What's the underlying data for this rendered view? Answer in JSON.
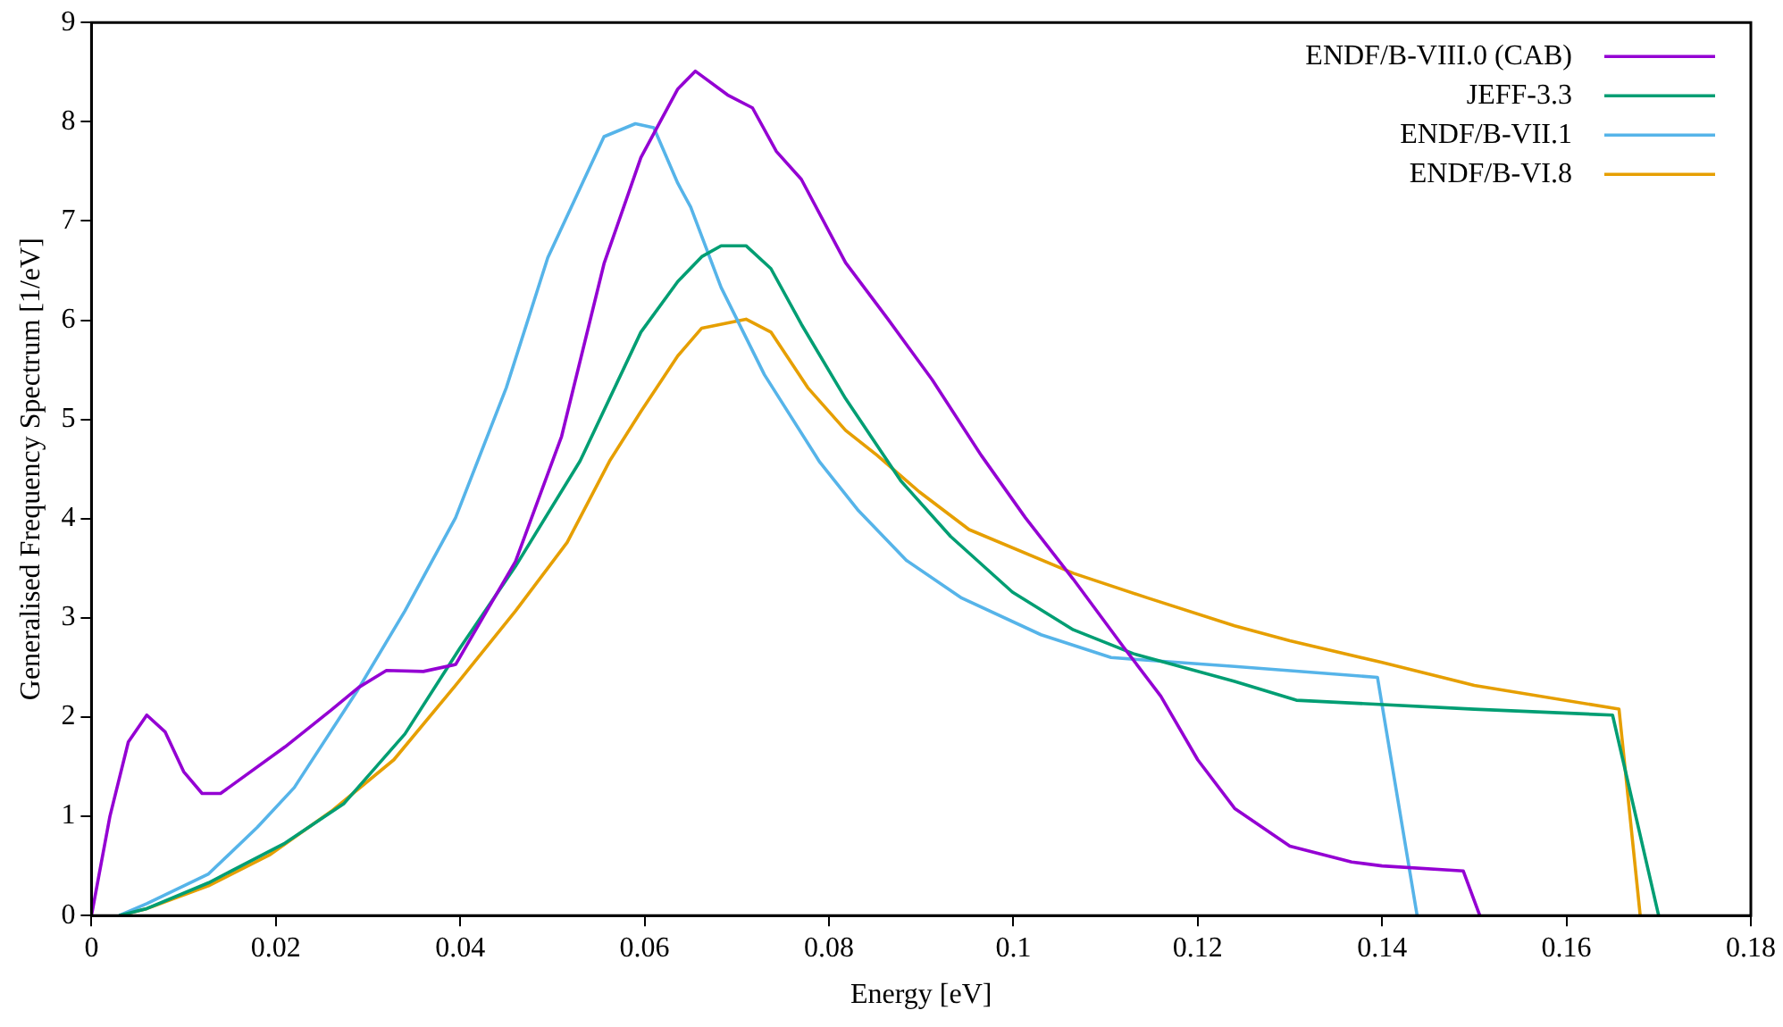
{
  "chart_data": {
    "type": "line",
    "xlabel": "Energy [eV]",
    "ylabel": "Generalised Frequency Spectrum [1/eV]",
    "xlim": [
      0,
      0.18
    ],
    "ylim": [
      0,
      9
    ],
    "xticks": [
      0,
      0.02,
      0.04,
      0.06,
      0.08,
      0.1,
      0.12,
      0.14,
      0.16,
      0.18
    ],
    "yticks": [
      0,
      1,
      2,
      3,
      4,
      5,
      6,
      7,
      8,
      9
    ],
    "grid": false,
    "legend": "top right",
    "marker": "none",
    "line_style": "solid",
    "series": [
      {
        "name": "ENDF/B-VIII.0 (CAB)",
        "color": "#9400d3",
        "x": [
          0,
          0.002,
          0.004,
          0.006,
          0.008,
          0.01,
          0.012,
          0.014,
          0.021,
          0.026,
          0.029,
          0.032,
          0.036,
          0.0395,
          0.041,
          0.046,
          0.051,
          0.0556,
          0.0596,
          0.0636,
          0.0655,
          0.069,
          0.0717,
          0.0743,
          0.077,
          0.0818,
          0.0864,
          0.0912,
          0.0965,
          0.1013,
          0.1065,
          0.112,
          0.116,
          0.12,
          0.124,
          0.13,
          0.1367,
          0.14,
          0.1488,
          0.1506
        ],
        "values": [
          0,
          1.0,
          1.75,
          2.02,
          1.85,
          1.45,
          1.23,
          1.23,
          1.7,
          2.07,
          2.3,
          2.47,
          2.46,
          2.53,
          2.77,
          3.57,
          4.83,
          6.57,
          7.64,
          8.33,
          8.51,
          8.27,
          8.14,
          7.7,
          7.42,
          6.58,
          6.01,
          5.4,
          4.64,
          4.01,
          3.39,
          2.7,
          2.21,
          1.57,
          1.08,
          0.7,
          0.54,
          0.5,
          0.45,
          0
        ]
      },
      {
        "name": "JEFF-3.3",
        "color": "#009e73",
        "x": [
          0.003,
          0.006,
          0.0127,
          0.021,
          0.0274,
          0.034,
          0.04,
          0.046,
          0.053,
          0.0596,
          0.0636,
          0.0662,
          0.0683,
          0.071,
          0.0737,
          0.077,
          0.0818,
          0.0878,
          0.0932,
          0.0999,
          0.1065,
          0.113,
          0.124,
          0.1307,
          0.15,
          0.165,
          0.17
        ],
        "values": [
          0,
          0.07,
          0.33,
          0.73,
          1.13,
          1.83,
          2.7,
          3.52,
          4.58,
          5.88,
          6.39,
          6.64,
          6.75,
          6.75,
          6.52,
          5.96,
          5.21,
          4.38,
          3.82,
          3.26,
          2.88,
          2.64,
          2.36,
          2.17,
          2.08,
          2.02,
          0
        ]
      },
      {
        "name": "ENDF/B-VII.1",
        "color": "#56b4e9",
        "x": [
          0.003,
          0.006,
          0.0127,
          0.018,
          0.022,
          0.0288,
          0.034,
          0.0395,
          0.045,
          0.0495,
          0.053,
          0.0556,
          0.059,
          0.061,
          0.0636,
          0.065,
          0.0683,
          0.073,
          0.079,
          0.0832,
          0.0884,
          0.0944,
          0.103,
          0.1106,
          0.124,
          0.1395,
          0.1438
        ],
        "values": [
          0,
          0.12,
          0.42,
          0.89,
          1.29,
          2.26,
          3.07,
          4.01,
          5.32,
          6.63,
          7.33,
          7.85,
          7.98,
          7.94,
          7.38,
          7.14,
          6.33,
          5.45,
          4.57,
          4.08,
          3.58,
          3.2,
          2.83,
          2.6,
          2.51,
          2.4,
          0
        ]
      },
      {
        "name": "ENDF/B-VI.8",
        "color": "#e69f00",
        "x": [
          0.003,
          0.006,
          0.0127,
          0.0193,
          0.026,
          0.0328,
          0.0395,
          0.046,
          0.0516,
          0.0562,
          0.0596,
          0.0636,
          0.0662,
          0.071,
          0.0737,
          0.0777,
          0.0818,
          0.0852,
          0.0898,
          0.0952,
          0.1065,
          0.1146,
          0.124,
          0.13,
          0.14,
          0.15,
          0.1657,
          0.168
        ],
        "values": [
          0,
          0.07,
          0.3,
          0.61,
          1.05,
          1.57,
          2.32,
          3.07,
          3.76,
          4.58,
          5.08,
          5.64,
          5.92,
          6.01,
          5.88,
          5.32,
          4.89,
          4.64,
          4.27,
          3.89,
          3.45,
          3.2,
          2.92,
          2.77,
          2.55,
          2.32,
          2.08,
          0
        ]
      }
    ]
  }
}
